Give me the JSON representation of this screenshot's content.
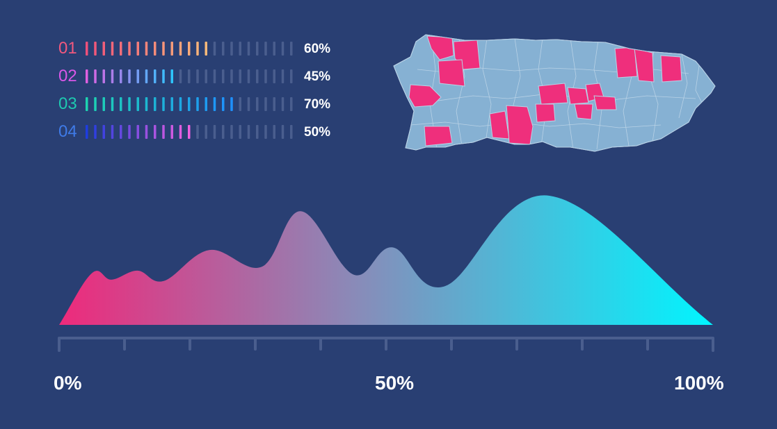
{
  "colors": {
    "background": "#293f73",
    "empty_tick": "#4a5e8e",
    "map_base": "#86b1d3",
    "map_highlight": "#ef2f7c",
    "area_start": "#ee2a7b",
    "area_mid": "#8a8ab8",
    "area_end": "#00f5ff"
  },
  "chart_data": [
    {
      "type": "bar",
      "subtype": "segmented-progress",
      "categories": [
        "01",
        "02",
        "03",
        "04"
      ],
      "values": [
        60,
        45,
        70,
        50
      ],
      "value_labels": [
        "60%",
        "45%",
        "70%",
        "50%"
      ],
      "total_segments": 25,
      "range": [
        0,
        100
      ],
      "series_colors": [
        [
          "#f0507a",
          "#f9b97a"
        ],
        [
          "#e060e0",
          "#2ec5ff"
        ],
        [
          "#1dd3b0",
          "#1e90ff"
        ],
        [
          "#1e3ce0",
          "#f060e0"
        ]
      ],
      "label_colors": [
        "#f2587e",
        "#d957e8",
        "#1ec9b0",
        "#3f7be8"
      ]
    },
    {
      "type": "area",
      "x": [
        0,
        5,
        8,
        12,
        16,
        23,
        31,
        37,
        45,
        51,
        59,
        75,
        100
      ],
      "y": [
        0,
        40,
        35,
        42,
        34,
        58,
        45,
        88,
        39,
        60,
        30,
        100,
        0
      ],
      "x_tick_labels": [
        "0%",
        "50%",
        "100%"
      ],
      "xlim": [
        0,
        100
      ],
      "ylim": [
        0,
        100
      ],
      "tick_count": 10,
      "grid": false
    },
    {
      "type": "map",
      "region": "Puerto Rico municipalities",
      "highlight_color": "#ef2f7c",
      "base_color": "#86b1d3"
    }
  ]
}
